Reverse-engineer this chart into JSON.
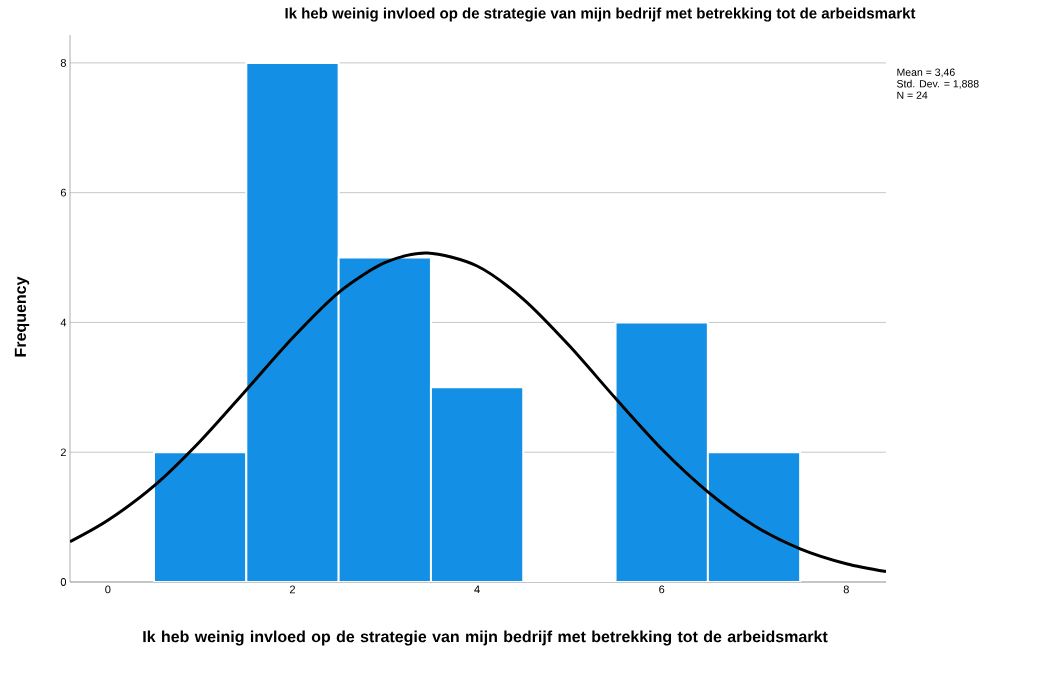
{
  "chart_data": {
    "type": "histogram",
    "title": "Ik heb weinig invloed op de strategie van mijn bedrijf met betrekking tot de arbeidsmarkt",
    "xlabel": "Ik heb weinig invloed op de strategie van mijn bedrijf met betrekking tot de arbeidsmarkt",
    "ylabel": "Frequency",
    "bins": [
      0.5,
      1.5,
      2.5,
      3.5,
      4.5,
      5.5,
      6.5,
      7.5
    ],
    "values": [
      2,
      8,
      5,
      3,
      0,
      4,
      2
    ],
    "color": "#1390e5",
    "series": [
      {
        "type": "line",
        "color": "#000000",
        "x": [
          -0.41,
          0,
          0.5,
          1,
          1.5,
          2,
          2.5,
          3,
          3.46,
          4,
          4.5,
          5,
          5.5,
          6,
          6.5,
          7,
          7.5,
          8,
          8.43
        ],
        "values": [
          0.62,
          0.95,
          1.48,
          2.17,
          2.96,
          3.76,
          4.46,
          4.92,
          5.07,
          4.87,
          4.36,
          3.64,
          2.83,
          2.05,
          1.39,
          0.87,
          0.51,
          0.28,
          0.16
        ]
      }
    ],
    "xlim": [
      -0.41,
      8.43
    ],
    "ylim": [
      0,
      8.43
    ],
    "xticks": [
      0,
      2,
      4,
      6,
      8
    ],
    "yticks": [
      0,
      2,
      4,
      6,
      8
    ],
    "grid": "y",
    "annotations": [
      "Mean = 3,46",
      "Std. Dev. = 1,888",
      "N = 24"
    ]
  }
}
